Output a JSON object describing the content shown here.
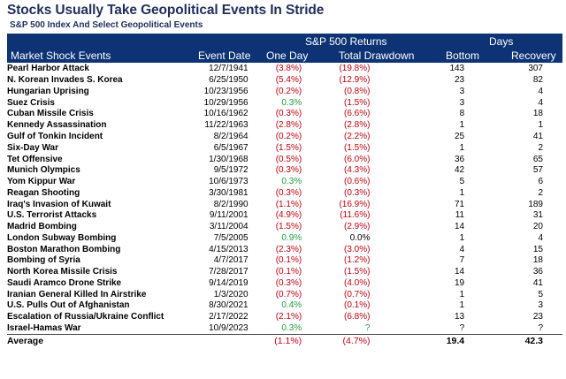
{
  "chart_data": {
    "type": "table",
    "title": "Stocks Usually Take Geopolitical Events In Stride",
    "subtitle": "S&P 500 Index And Select Geopolitical Events",
    "group_headers": {
      "returns": "S&P 500 Returns",
      "days": "Days"
    },
    "columns": [
      "Market Shock Events",
      "Event Date",
      "One Day",
      "Total Drawdown",
      "Bottom",
      "Recovery"
    ],
    "rows": [
      {
        "event": "Pearl Harbor Attack",
        "date": "12/7/1941",
        "one_day": "(3.8%)",
        "drawdown": "(19.8%)",
        "bottom": "143",
        "recovery": "307"
      },
      {
        "event": "N. Korean Invades S. Korea",
        "date": "6/25/1950",
        "one_day": "(5.4%)",
        "drawdown": "(12.9%)",
        "bottom": "23",
        "recovery": "82"
      },
      {
        "event": "Hungarian Uprising",
        "date": "10/23/1956",
        "one_day": "(0.2%)",
        "drawdown": "(0.8%)",
        "bottom": "3",
        "recovery": "4"
      },
      {
        "event": "Suez Crisis",
        "date": "10/29/1956",
        "one_day": "0.3%",
        "drawdown": "(1.5%)",
        "bottom": "3",
        "recovery": "4"
      },
      {
        "event": "Cuban Missile Crisis",
        "date": "10/16/1962",
        "one_day": "(0.3%)",
        "drawdown": "(6.6%)",
        "bottom": "8",
        "recovery": "18"
      },
      {
        "event": "Kennedy Assassination",
        "date": "11/22/1963",
        "one_day": "(2.8%)",
        "drawdown": "(2.8%)",
        "bottom": "1",
        "recovery": "1"
      },
      {
        "event": "Gulf of Tonkin Incident",
        "date": "8/2/1964",
        "one_day": "(0.2%)",
        "drawdown": "(2.2%)",
        "bottom": "25",
        "recovery": "41"
      },
      {
        "event": "Six-Day War",
        "date": "6/5/1967",
        "one_day": "(1.5%)",
        "drawdown": "(1.5%)",
        "bottom": "1",
        "recovery": "2"
      },
      {
        "event": "Tet Offensive",
        "date": "1/30/1968",
        "one_day": "(0.5%)",
        "drawdown": "(6.0%)",
        "bottom": "36",
        "recovery": "65"
      },
      {
        "event": "Munich Olympics",
        "date": "9/5/1972",
        "one_day": "(0.3%)",
        "drawdown": "(4.3%)",
        "bottom": "42",
        "recovery": "57"
      },
      {
        "event": "Yom Kippur War",
        "date": "10/6/1973",
        "one_day": "0.3%",
        "drawdown": "(0.6%)",
        "bottom": "5",
        "recovery": "6"
      },
      {
        "event": "Reagan Shooting",
        "date": "3/30/1981",
        "one_day": "(0.3%)",
        "drawdown": "(0.3%)",
        "bottom": "1",
        "recovery": "2"
      },
      {
        "event": "Iraq's Invasion of Kuwait",
        "date": "8/2/1990",
        "one_day": "(1.1%)",
        "drawdown": "(16.9%)",
        "bottom": "71",
        "recovery": "189"
      },
      {
        "event": "U.S. Terrorist Attacks",
        "date": "9/11/2001",
        "one_day": "(4.9%)",
        "drawdown": "(11.6%)",
        "bottom": "11",
        "recovery": "31"
      },
      {
        "event": "Madrid Bombing",
        "date": "3/11/2004",
        "one_day": "(1.5%)",
        "drawdown": "(2.9%)",
        "bottom": "14",
        "recovery": "20"
      },
      {
        "event": "London Subway Bombing",
        "date": "7/5/2005",
        "one_day": "0.9%",
        "drawdown": "0.0%",
        "bottom": "1",
        "recovery": "4"
      },
      {
        "event": "Boston Marathon Bombing",
        "date": "4/15/2013",
        "one_day": "(2.3%)",
        "drawdown": "(3.0%)",
        "bottom": "4",
        "recovery": "15"
      },
      {
        "event": "Bombing of Syria",
        "date": "4/7/2017",
        "one_day": "(0.1%)",
        "drawdown": "(1.2%)",
        "bottom": "7",
        "recovery": "18"
      },
      {
        "event": "North Korea Missile Crisis",
        "date": "7/28/2017",
        "one_day": "(0.1%)",
        "drawdown": "(1.5%)",
        "bottom": "14",
        "recovery": "36"
      },
      {
        "event": "Saudi Aramco Drone Strike",
        "date": "9/14/2019",
        "one_day": "(0.3%)",
        "drawdown": "(4.0%)",
        "bottom": "19",
        "recovery": "41"
      },
      {
        "event": "Iranian General Killed In Airstrike",
        "date": "1/3/2020",
        "one_day": "(0.7%)",
        "drawdown": "(0.7%)",
        "bottom": "1",
        "recovery": "5"
      },
      {
        "event": "U.S. Pulls Out of Afghanistan",
        "date": "8/30/2021",
        "one_day": "0.4%",
        "drawdown": "(0.1%)",
        "bottom": "1",
        "recovery": "3"
      },
      {
        "event": "Escalation of Russia/Ukraine Conflict",
        "date": "2/17/2022",
        "one_day": "(2.1%)",
        "drawdown": "(6.8%)",
        "bottom": "13",
        "recovery": "23"
      },
      {
        "event": "Israel-Hamas War",
        "date": "10/9/2023",
        "one_day": "0.3%",
        "drawdown": "?",
        "bottom": "?",
        "recovery": "?"
      }
    ],
    "average": {
      "label": "Average",
      "one_day": "(1.1%)",
      "drawdown": "(4.7%)",
      "bottom": "19.4",
      "recovery": "42.3"
    },
    "colors": {
      "header_bg": "#0d3375",
      "header_text": "#ffffff",
      "title_text": "#1f2f5c",
      "negative": "#c0000e",
      "positive": "#1f9e3a"
    }
  }
}
